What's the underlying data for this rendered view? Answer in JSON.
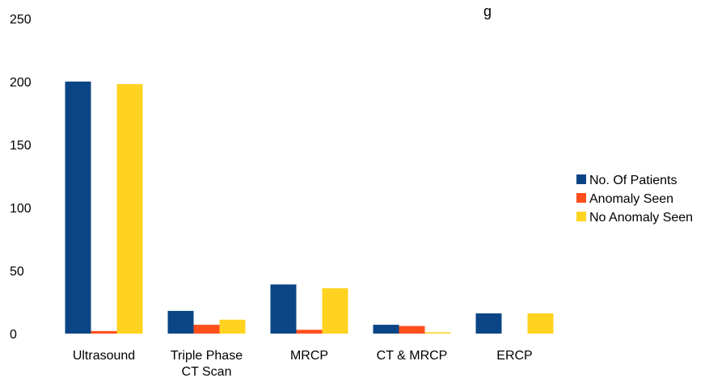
{
  "chart_data": {
    "type": "bar",
    "title": "",
    "title_fragment": "g",
    "xlabel": "",
    "ylabel": "",
    "categories": [
      [
        "Ultrasound"
      ],
      [
        "Triple Phase",
        "CT Scan"
      ],
      [
        "MRCP"
      ],
      [
        "CT & MRCP"
      ],
      [
        "ERCP"
      ]
    ],
    "series": [
      {
        "name": "No. Of Patients",
        "color": "#0b4586",
        "values": [
          200,
          18,
          39,
          7,
          16
        ]
      },
      {
        "name": "Anomaly Seen",
        "color": "#ff4f1c",
        "values": [
          2,
          7,
          3,
          6,
          0
        ]
      },
      {
        "name": "No Anomaly Seen",
        "color": "#ffd320",
        "values": [
          198,
          11,
          36,
          1,
          16
        ]
      }
    ],
    "ylim": [
      0,
      250
    ],
    "yticks": [
      0,
      50,
      100,
      150,
      200,
      250
    ],
    "grid": false,
    "legend_position": "right"
  }
}
